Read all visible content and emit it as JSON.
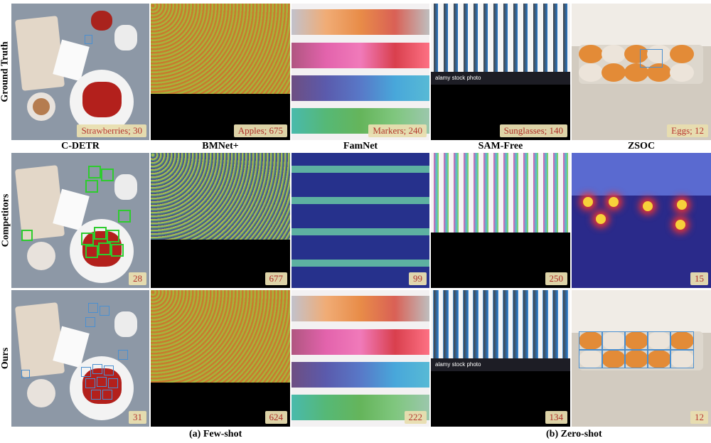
{
  "row_labels": [
    "Ground Truth",
    "Competitors",
    "Ours"
  ],
  "method_headers": [
    "C-DETR",
    "BMNet+",
    "FamNet",
    "SAM-Free",
    "ZSOC"
  ],
  "ground_truth_counts": [
    "Strawberries; 30",
    "Apples; 675",
    "Markers; 240",
    "Sunglasses; 140",
    "Eggs; 12"
  ],
  "competitor_counts": [
    "28",
    "677",
    "99",
    "250",
    "15"
  ],
  "ours_counts": [
    "31",
    "624",
    "222",
    "134",
    "12"
  ],
  "watermark": "alamy stock photo",
  "captions": {
    "few_shot": "(a) Few-shot",
    "zero_shot": "(b) Zero-shot"
  },
  "colors": {
    "badge_bg": "#e9dfb0",
    "badge_text": "#b7302a",
    "gt_box": "#4a8fd0",
    "comp_box": "#2ecc2e"
  }
}
